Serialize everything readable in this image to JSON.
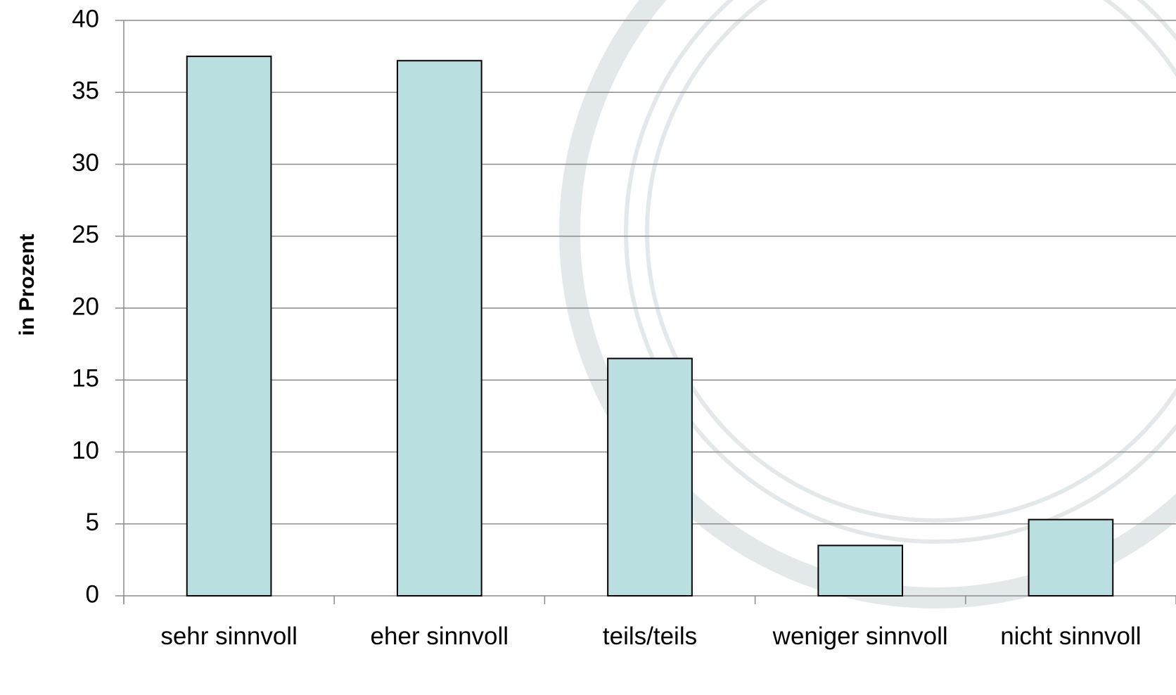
{
  "chart_data": {
    "type": "bar",
    "y_label": "in Prozent",
    "categories": [
      "sehr sinnvoll",
      "eher sinnvoll",
      "teils/teils",
      "weniger sinnvoll",
      "nicht sinnvoll"
    ],
    "values": [
      37.5,
      37.2,
      16.5,
      3.5,
      5.3
    ],
    "color": "#b9dfe1",
    "ylim": [
      0,
      40
    ],
    "yticks": [
      0,
      5,
      10,
      15,
      20,
      25,
      30,
      35,
      40
    ],
    "grid": true
  }
}
